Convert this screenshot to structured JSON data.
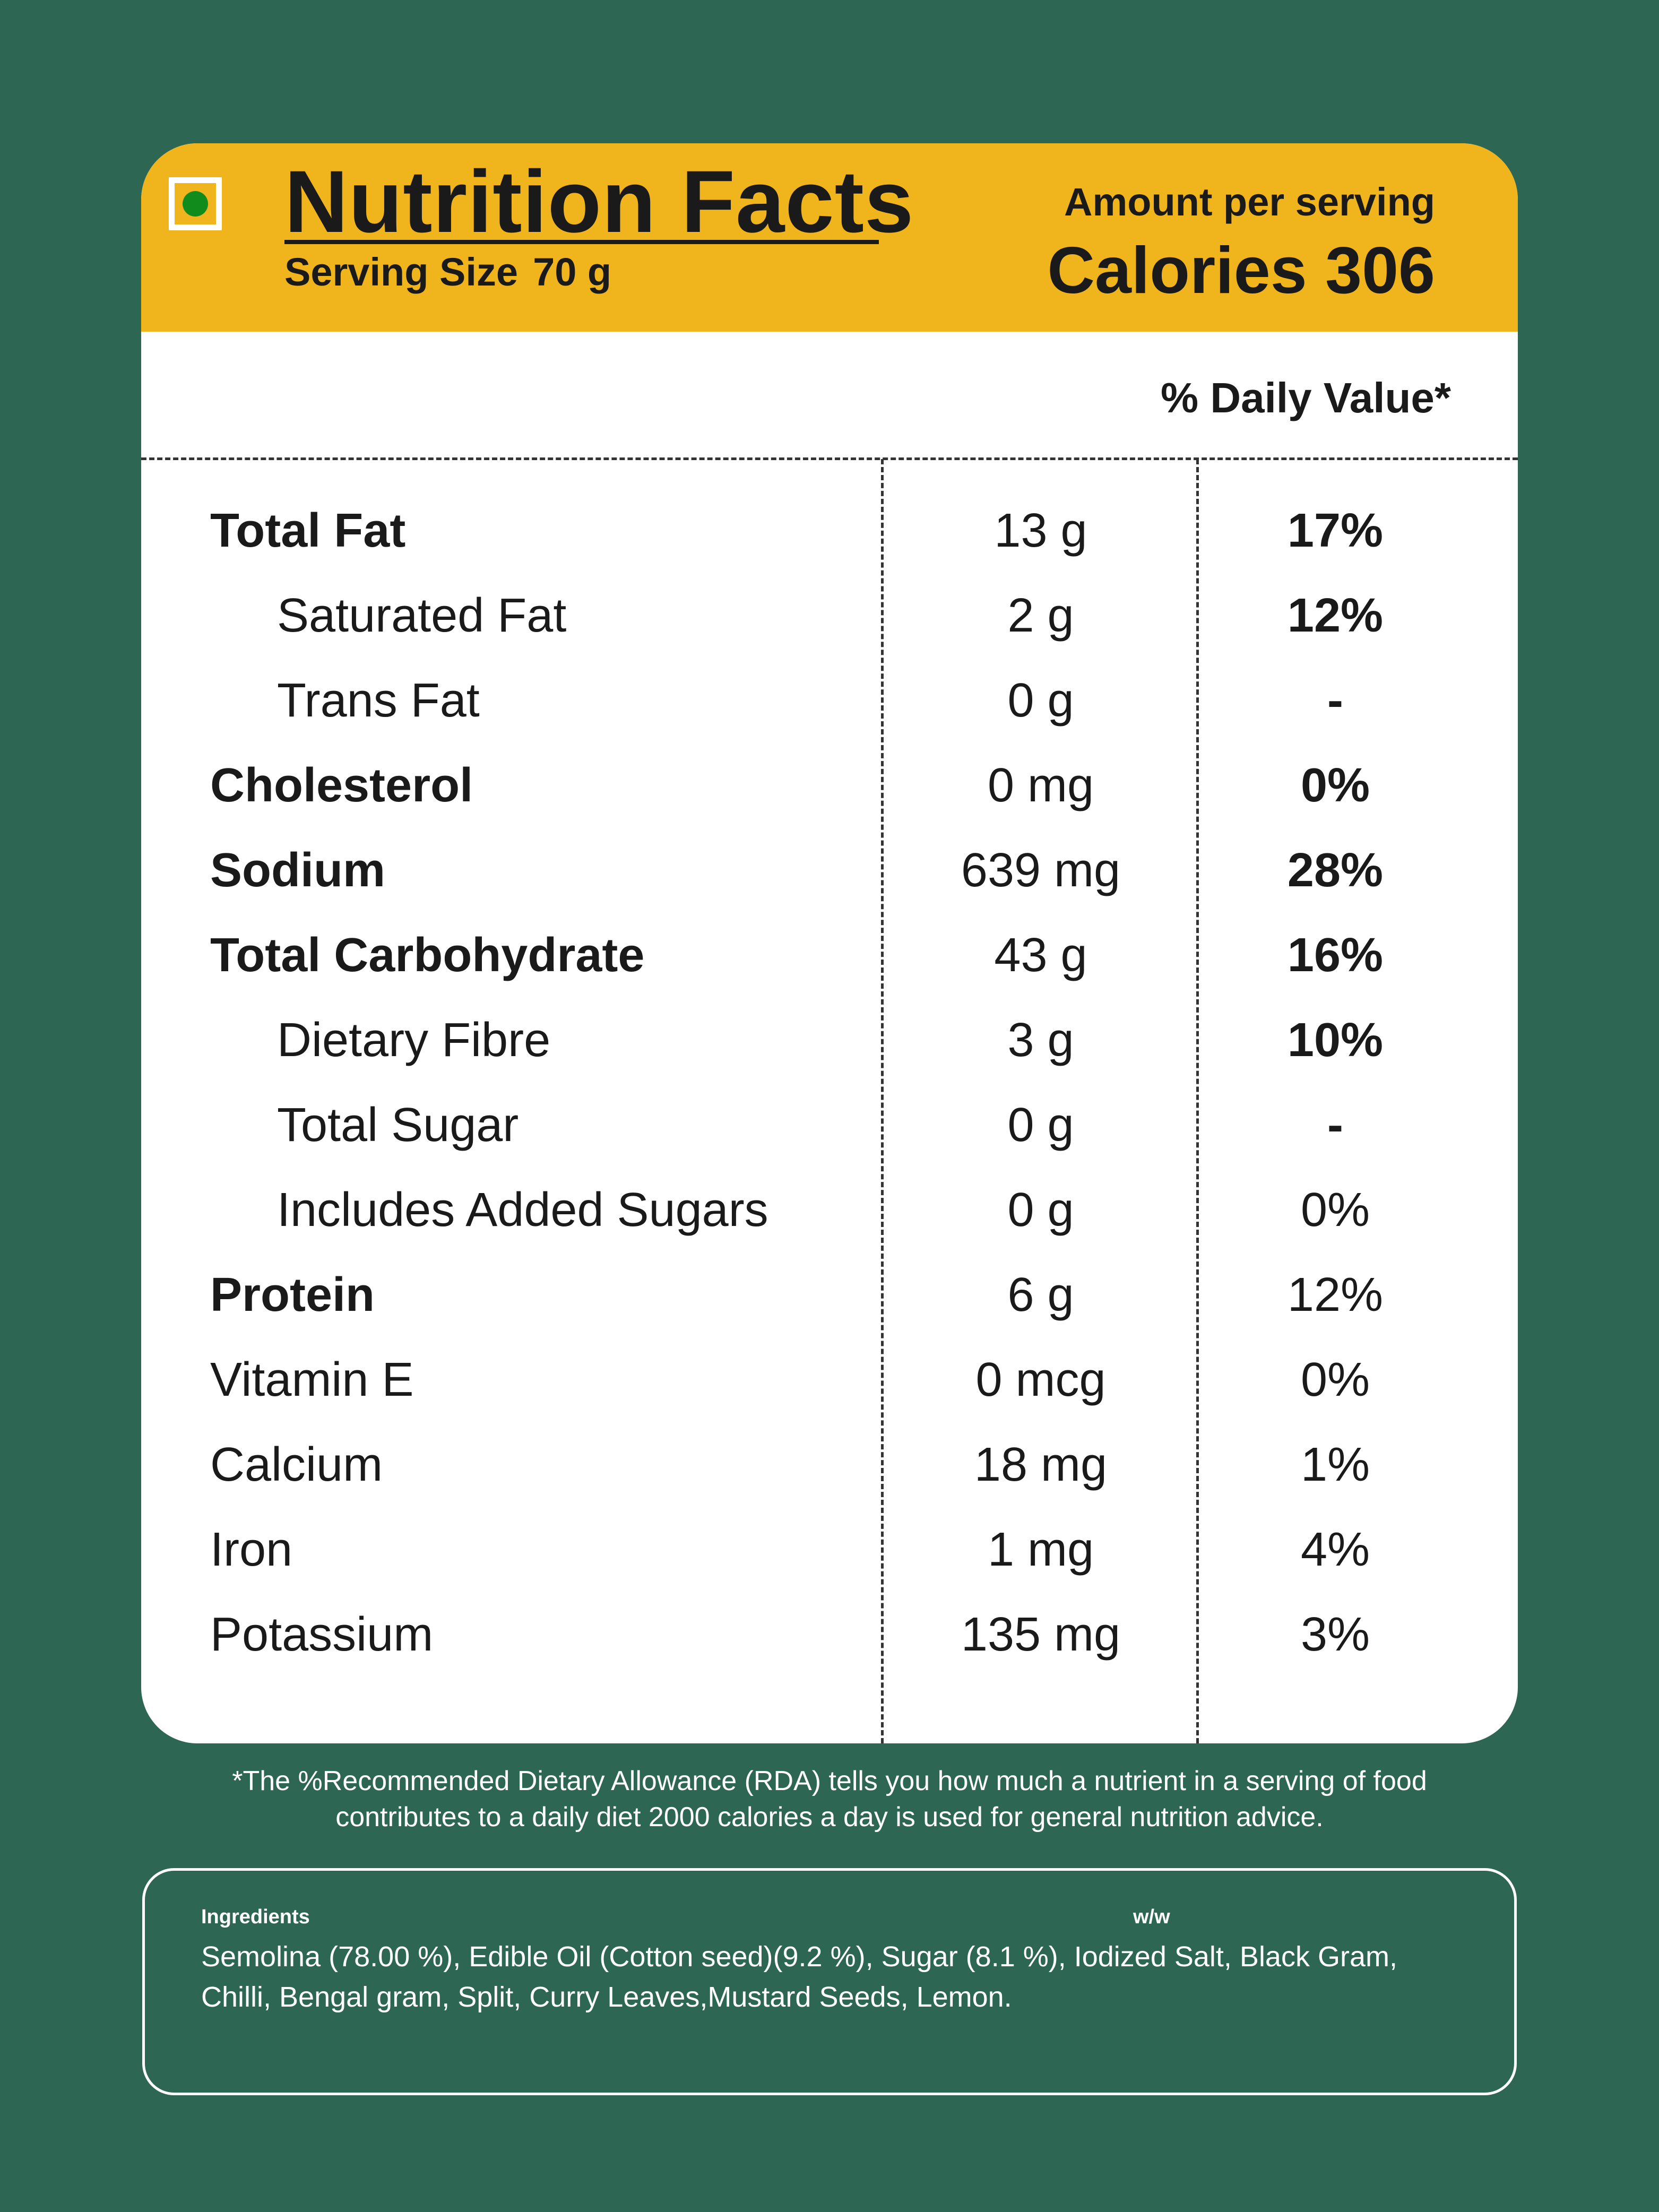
{
  "header": {
    "title": "Nutrition Facts",
    "serving_label": "Serving Size",
    "serving_value": "70 g",
    "amount_label": "Amount per serving",
    "calories": "Calories 306",
    "veg_symbol": "veg-mark-icon"
  },
  "table": {
    "dv_header": "% Daily Value*",
    "rows": [
      {
        "label": "Total Fat",
        "amount": "13 g",
        "dv": "17%",
        "bold": true,
        "indent": false,
        "dv_bold": true
      },
      {
        "label": "Saturated Fat",
        "amount": "2 g",
        "dv": "12%",
        "bold": false,
        "indent": true,
        "dv_bold": true
      },
      {
        "label": "Trans Fat",
        "amount": "0 g",
        "dv": "-",
        "bold": false,
        "indent": true,
        "dv_bold": true
      },
      {
        "label": "Cholesterol",
        "amount": "0 mg",
        "dv": "0%",
        "bold": true,
        "indent": false,
        "dv_bold": true
      },
      {
        "label": "Sodium",
        "amount": "639 mg",
        "dv": "28%",
        "bold": true,
        "indent": false,
        "dv_bold": true
      },
      {
        "label": "Total Carbohydrate",
        "amount": "43 g",
        "dv": "16%",
        "bold": true,
        "indent": false,
        "dv_bold": true
      },
      {
        "label": "Dietary Fibre",
        "amount": "3 g",
        "dv": "10%",
        "bold": false,
        "indent": true,
        "dv_bold": true
      },
      {
        "label": "Total Sugar",
        "amount": "0 g",
        "dv": "-",
        "bold": false,
        "indent": true,
        "dv_bold": true
      },
      {
        "label": "Includes Added Sugars",
        "amount": "0 g",
        "dv": "0%",
        "bold": false,
        "indent": true,
        "dv_bold": false
      },
      {
        "label": "Protein",
        "amount": "6 g",
        "dv": "12%",
        "bold": true,
        "indent": false,
        "dv_bold": false
      },
      {
        "label": "Vitamin E",
        "amount": "0 mcg",
        "dv": "0%",
        "bold": false,
        "indent": false,
        "dv_bold": false
      },
      {
        "label": "Calcium",
        "amount": "18 mg",
        "dv": "1%",
        "bold": false,
        "indent": false,
        "dv_bold": false
      },
      {
        "label": "Iron",
        "amount": "1 mg",
        "dv": "4%",
        "bold": false,
        "indent": false,
        "dv_bold": false
      },
      {
        "label": "Potassium",
        "amount": "135 mg",
        "dv": "3%",
        "bold": false,
        "indent": false,
        "dv_bold": false
      }
    ]
  },
  "footnote": {
    "line1": "*The %Recommended Dietary Allowance (RDA) tells you how much a nutrient in a serving of food",
    "line2": "contributes to a daily diet 2000 calories a day is used for general nutrition advice."
  },
  "ingredients": {
    "label": "Ingredients",
    "ww_label": "w/w",
    "line1": "Semolina (78.00 %), Edible Oil (Cotton seed)(9.2 %), Sugar (8.1 %), Iodized Salt, Black Gram,",
    "line2": "Chilli, Bengal gram, Split, Curry Leaves,Mustard Seeds, Lemon."
  },
  "colors": {
    "background": "#2d6753",
    "header": "#f0b51c",
    "veg_dot": "#128b1d",
    "text": "#1a1a1a"
  }
}
